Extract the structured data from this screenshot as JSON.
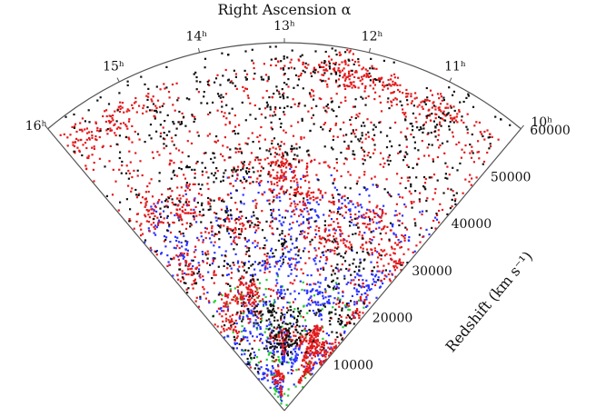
{
  "chart_data": {
    "type": "scatter",
    "projection": "polar-wedge",
    "title": "Right Ascension α",
    "ra_axis": {
      "unit": "hours",
      "range": [
        10,
        16
      ],
      "ticks": [
        {
          "value": 16,
          "label": "16ʰ"
        },
        {
          "value": 15,
          "label": "15ʰ"
        },
        {
          "value": 14,
          "label": "14ʰ"
        },
        {
          "value": 13,
          "label": "13ʰ"
        },
        {
          "value": 12,
          "label": "12ʰ"
        },
        {
          "value": 11,
          "label": "11ʰ"
        },
        {
          "value": 10,
          "label": "10ʰ"
        }
      ]
    },
    "radial_axis": {
      "label": "Redshift (km s⁻¹)",
      "range": [
        0,
        60000
      ],
      "ticks": [
        {
          "value": 10000,
          "label": "10000"
        },
        {
          "value": 20000,
          "label": "20000"
        },
        {
          "value": 30000,
          "label": "30000"
        },
        {
          "value": 40000,
          "label": "40000"
        },
        {
          "value": 50000,
          "label": "50000"
        },
        {
          "value": 60000,
          "label": "60000"
        }
      ]
    },
    "series": [
      {
        "color": "#22cc33",
        "cz_range": [
          0,
          22000
        ],
        "count": 160
      },
      {
        "color": "#2b33ff",
        "cz_range": [
          3000,
          40000
        ],
        "count": 900
      },
      {
        "color": "#e31a1c",
        "cz_range": [
          5000,
          57000
        ],
        "count": 2300
      },
      {
        "color": "#111111",
        "cz_range": [
          8000,
          60000
        ],
        "count": 1100
      }
    ],
    "grid": false,
    "legend": "none"
  }
}
